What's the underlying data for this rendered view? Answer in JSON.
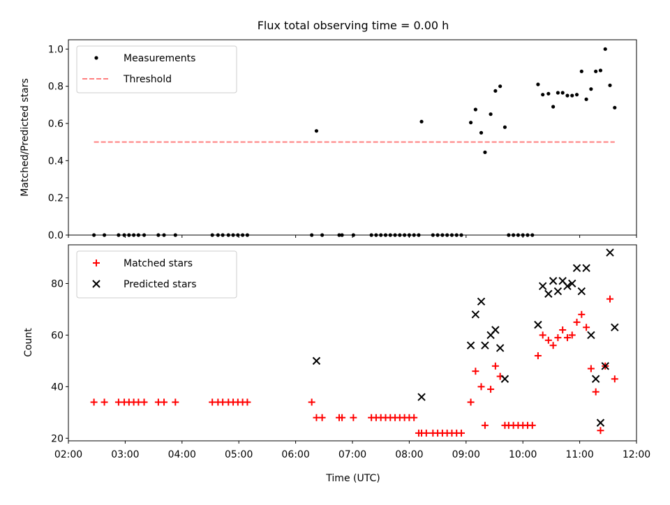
{
  "chart_data": [
    {
      "type": "scatter",
      "title": "Flux total observing time = 0.00 h",
      "xlabel": "",
      "ylabel": "Matched/Predicted stars",
      "xlim": [
        "02:00",
        "12:00"
      ],
      "ylim": [
        0,
        1.05
      ],
      "yticks": [
        "0.0",
        "0.2",
        "0.4",
        "0.6",
        "0.8",
        "1.0"
      ],
      "legend_position": "top-left",
      "series": [
        {
          "name": "Measurements",
          "marker": "dot",
          "color": "#000000",
          "points": [
            [
              "02:27",
              0
            ],
            [
              "02:38",
              0
            ],
            [
              "02:53",
              0
            ],
            [
              "02:59",
              0
            ],
            [
              "03:04",
              0
            ],
            [
              "03:09",
              0
            ],
            [
              "03:14",
              0
            ],
            [
              "03:20",
              0
            ],
            [
              "03:35",
              0
            ],
            [
              "03:41",
              0
            ],
            [
              "03:53",
              0
            ],
            [
              "04:32",
              0
            ],
            [
              "04:38",
              0
            ],
            [
              "04:43",
              0
            ],
            [
              "04:49",
              0
            ],
            [
              "04:54",
              0
            ],
            [
              "04:59",
              0
            ],
            [
              "05:04",
              0
            ],
            [
              "05:09",
              0
            ],
            [
              "06:17",
              0
            ],
            [
              "06:22",
              0.56
            ],
            [
              "06:28",
              0
            ],
            [
              "06:46",
              0
            ],
            [
              "06:49",
              0
            ],
            [
              "07:01",
              0
            ],
            [
              "07:20",
              0
            ],
            [
              "07:25",
              0
            ],
            [
              "07:30",
              0
            ],
            [
              "07:35",
              0
            ],
            [
              "07:40",
              0
            ],
            [
              "07:45",
              0
            ],
            [
              "07:50",
              0
            ],
            [
              "07:55",
              0
            ],
            [
              "08:00",
              0
            ],
            [
              "08:05",
              0
            ],
            [
              "08:10",
              0
            ],
            [
              "08:13",
              0.61
            ],
            [
              "08:25",
              0
            ],
            [
              "08:30",
              0
            ],
            [
              "08:35",
              0
            ],
            [
              "08:40",
              0
            ],
            [
              "08:45",
              0
            ],
            [
              "08:50",
              0
            ],
            [
              "08:55",
              0
            ],
            [
              "09:05",
              0.605
            ],
            [
              "09:10",
              0.675
            ],
            [
              "09:16",
              0.55
            ],
            [
              "09:20",
              0.445
            ],
            [
              "09:26",
              0.65
            ],
            [
              "09:31",
              0.775
            ],
            [
              "09:36",
              0.8
            ],
            [
              "09:41",
              0.58
            ],
            [
              "09:45",
              0
            ],
            [
              "09:50",
              0
            ],
            [
              "09:55",
              0
            ],
            [
              "10:00",
              0
            ],
            [
              "10:05",
              0
            ],
            [
              "10:10",
              0
            ],
            [
              "10:16",
              0.81
            ],
            [
              "10:21",
              0.755
            ],
            [
              "10:27",
              0.76
            ],
            [
              "10:32",
              0.69
            ],
            [
              "10:37",
              0.765
            ],
            [
              "10:42",
              0.765
            ],
            [
              "10:47",
              0.75
            ],
            [
              "10:52",
              0.75
            ],
            [
              "10:57",
              0.755
            ],
            [
              "11:02",
              0.88
            ],
            [
              "11:07",
              0.73
            ],
            [
              "11:12",
              0.785
            ],
            [
              "11:17",
              0.88
            ],
            [
              "11:22",
              0.885
            ],
            [
              "11:27",
              1.0
            ],
            [
              "11:32",
              0.805
            ],
            [
              "11:37",
              0.685
            ]
          ]
        },
        {
          "name": "Threshold",
          "marker": "dashed-line",
          "color": "#ff7f7f",
          "points": [
            [
              "02:27",
              0.5
            ],
            [
              "11:37",
              0.5
            ]
          ]
        }
      ]
    },
    {
      "type": "scatter",
      "title": "",
      "xlabel": "Time (UTC)",
      "ylabel": "Count",
      "xlim": [
        "02:00",
        "12:00"
      ],
      "ylim": [
        19,
        95
      ],
      "yticks": [
        "20",
        "40",
        "60",
        "80"
      ],
      "xticks": [
        "02:00",
        "03:00",
        "04:00",
        "05:00",
        "06:00",
        "07:00",
        "08:00",
        "09:00",
        "10:00",
        "11:00",
        "12:00"
      ],
      "legend_position": "top-left",
      "series": [
        {
          "name": "Matched stars",
          "marker": "plus",
          "color": "#ff0000",
          "points": [
            [
              "02:27",
              34
            ],
            [
              "02:38",
              34
            ],
            [
              "02:53",
              34
            ],
            [
              "02:59",
              34
            ],
            [
              "03:04",
              34
            ],
            [
              "03:09",
              34
            ],
            [
              "03:14",
              34
            ],
            [
              "03:20",
              34
            ],
            [
              "03:35",
              34
            ],
            [
              "03:41",
              34
            ],
            [
              "03:53",
              34
            ],
            [
              "04:32",
              34
            ],
            [
              "04:38",
              34
            ],
            [
              "04:43",
              34
            ],
            [
              "04:49",
              34
            ],
            [
              "04:54",
              34
            ],
            [
              "04:59",
              34
            ],
            [
              "05:04",
              34
            ],
            [
              "05:09",
              34
            ],
            [
              "06:17",
              34
            ],
            [
              "06:22",
              28
            ],
            [
              "06:28",
              28
            ],
            [
              "06:46",
              28
            ],
            [
              "06:49",
              28
            ],
            [
              "07:01",
              28
            ],
            [
              "07:20",
              28
            ],
            [
              "07:25",
              28
            ],
            [
              "07:30",
              28
            ],
            [
              "07:35",
              28
            ],
            [
              "07:40",
              28
            ],
            [
              "07:45",
              28
            ],
            [
              "07:50",
              28
            ],
            [
              "07:55",
              28
            ],
            [
              "08:00",
              28
            ],
            [
              "08:05",
              28
            ],
            [
              "08:10",
              22
            ],
            [
              "08:13",
              22
            ],
            [
              "08:18",
              22
            ],
            [
              "08:25",
              22
            ],
            [
              "08:30",
              22
            ],
            [
              "08:35",
              22
            ],
            [
              "08:40",
              22
            ],
            [
              "08:45",
              22
            ],
            [
              "08:50",
              22
            ],
            [
              "08:55",
              22
            ],
            [
              "09:05",
              34
            ],
            [
              "09:10",
              46
            ],
            [
              "09:16",
              40
            ],
            [
              "09:20",
              25
            ],
            [
              "09:26",
              39
            ],
            [
              "09:31",
              48
            ],
            [
              "09:36",
              44
            ],
            [
              "09:41",
              25
            ],
            [
              "09:45",
              25
            ],
            [
              "09:50",
              25
            ],
            [
              "09:55",
              25
            ],
            [
              "10:00",
              25
            ],
            [
              "10:05",
              25
            ],
            [
              "10:10",
              25
            ],
            [
              "10:16",
              52
            ],
            [
              "10:21",
              60
            ],
            [
              "10:27",
              58
            ],
            [
              "10:32",
              56
            ],
            [
              "10:37",
              59
            ],
            [
              "10:42",
              62
            ],
            [
              "10:47",
              59
            ],
            [
              "10:52",
              60
            ],
            [
              "10:57",
              65
            ],
            [
              "11:02",
              68
            ],
            [
              "11:07",
              63
            ],
            [
              "11:12",
              47
            ],
            [
              "11:17",
              38
            ],
            [
              "11:22",
              23
            ],
            [
              "11:27",
              48
            ],
            [
              "11:32",
              74
            ],
            [
              "11:37",
              43
            ]
          ]
        },
        {
          "name": "Predicted stars",
          "marker": "x",
          "color": "#000000",
          "points": [
            [
              "06:22",
              50
            ],
            [
              "08:13",
              36
            ],
            [
              "09:05",
              56
            ],
            [
              "09:10",
              68
            ],
            [
              "09:16",
              73
            ],
            [
              "09:20",
              56
            ],
            [
              "09:26",
              60
            ],
            [
              "09:31",
              62
            ],
            [
              "09:36",
              55
            ],
            [
              "09:41",
              43
            ],
            [
              "10:16",
              64
            ],
            [
              "10:21",
              79
            ],
            [
              "10:27",
              76
            ],
            [
              "10:32",
              81
            ],
            [
              "10:37",
              77
            ],
            [
              "10:42",
              81
            ],
            [
              "10:47",
              79
            ],
            [
              "10:52",
              80
            ],
            [
              "10:57",
              86
            ],
            [
              "11:02",
              77
            ],
            [
              "11:07",
              86
            ],
            [
              "11:12",
              60
            ],
            [
              "11:17",
              43
            ],
            [
              "11:22",
              26
            ],
            [
              "11:27",
              48
            ],
            [
              "11:32",
              92
            ],
            [
              "11:37",
              63
            ]
          ]
        }
      ]
    }
  ]
}
